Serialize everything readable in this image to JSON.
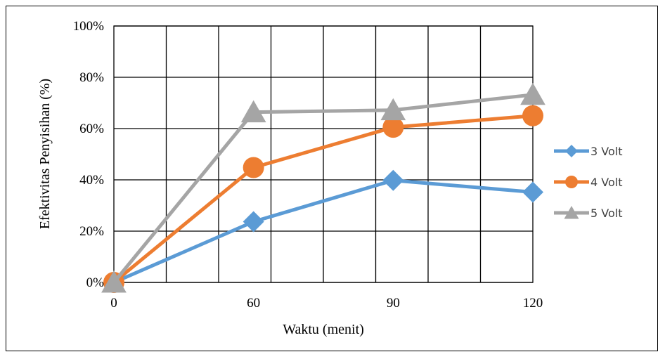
{
  "chart_data": {
    "type": "line",
    "title": "",
    "xlabel": "Waktu (menit)",
    "ylabel": "Efektivitas Penyisihan (%)",
    "x_categories": [
      "0",
      "60",
      "90",
      "120"
    ],
    "y_ticks": [
      "0%",
      "20%",
      "40%",
      "60%",
      "80%",
      "100%"
    ],
    "ylim": [
      0,
      100
    ],
    "grid": true,
    "legend_position": "right",
    "series": [
      {
        "name": "3 Volt",
        "values": [
          0,
          23.7,
          39.8,
          35.2
        ],
        "color": "#5b9bd5",
        "marker": "diamond"
      },
      {
        "name": "4 Volt",
        "values": [
          0,
          44.8,
          60.5,
          65.0
        ],
        "color": "#ed7d31",
        "marker": "circle"
      },
      {
        "name": "5 Volt",
        "values": [
          0,
          66.4,
          67.2,
          73.2
        ],
        "color": "#a5a5a5",
        "marker": "triangle"
      }
    ]
  }
}
